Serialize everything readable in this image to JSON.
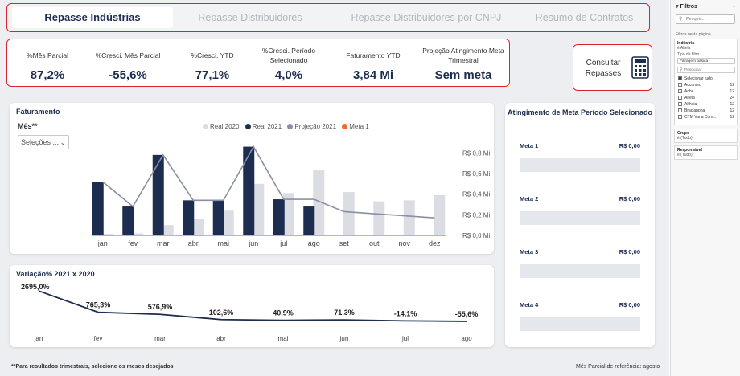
{
  "tabs": [
    {
      "label": "Repasse Indústrias",
      "active": true
    },
    {
      "label": "Repasse Distribuidores",
      "active": false
    },
    {
      "label": "Repasse Distribuidores por CNPJ",
      "active": false
    },
    {
      "label": "Resumo de Contratos",
      "active": false
    }
  ],
  "kpis": [
    {
      "label": "%Mês Parcial",
      "value": "87,2%"
    },
    {
      "label": "%Cresci. Mês Parcial",
      "value": "-55,6%"
    },
    {
      "label": "%Cresci. YTD",
      "value": "77,1%"
    },
    {
      "label": "%Cresci. Período Selecionado",
      "value": "4,0%"
    },
    {
      "label": "Faturamento YTD",
      "value": "3,84 Mi"
    },
    {
      "label": "Projeção Atingimento Meta Trimestral",
      "value": "Sem meta"
    }
  ],
  "consult": {
    "label": "Consultar Repasses",
    "icon": "calculator-icon"
  },
  "faturamento": {
    "title": "Faturamento",
    "month_label": "Mês**",
    "month_select": "Seleções ...",
    "legend": [
      {
        "name": "Real 2020",
        "color": "#dcdde3"
      },
      {
        "name": "Real 2021",
        "color": "#1d2d4f"
      },
      {
        "name": "Projeção 2021",
        "color": "#8a8fa3"
      },
      {
        "name": "Meta 1",
        "color": "#f26b2a"
      }
    ]
  },
  "variacao": {
    "title": "Variação% 2021 x 2020"
  },
  "chart_data": [
    {
      "type": "bar",
      "title": "Faturamento",
      "categories": [
        "jan",
        "fev",
        "mar",
        "abr",
        "mai",
        "jun",
        "jul",
        "ago",
        "set",
        "out",
        "nov",
        "dez"
      ],
      "y_ticks": [
        "R$ 0,0 Mi",
        "R$ 0,2 Mi",
        "R$ 0,4 Mi",
        "R$ 0,6 Mi",
        "R$ 0,8 Mi"
      ],
      "ylim": [
        0,
        0.88
      ],
      "series": [
        {
          "name": "Real 2020",
          "kind": "bar",
          "color": "#dcdde3",
          "values": [
            0.015,
            0.02,
            0.1,
            0.16,
            0.24,
            0.5,
            0.41,
            0.63,
            0.42,
            0.33,
            0.34,
            0.39
          ]
        },
        {
          "name": "Real 2021",
          "kind": "bar",
          "color": "#1d2d4f",
          "values": [
            0.52,
            0.28,
            0.78,
            0.34,
            0.34,
            0.86,
            0.35,
            0.28,
            null,
            null,
            null,
            null
          ]
        },
        {
          "name": "Projeção 2021",
          "kind": "line",
          "color": "#8a8fa3",
          "values": [
            0.52,
            0.28,
            0.78,
            0.34,
            0.34,
            0.86,
            0.35,
            0.35,
            0.23,
            0.21,
            0.19,
            0.17
          ]
        },
        {
          "name": "Meta 1",
          "kind": "line",
          "color": "#f26b2a",
          "values": [
            0,
            0,
            0,
            0,
            0,
            0,
            0,
            0,
            0,
            0,
            0,
            0
          ]
        }
      ],
      "grid": false,
      "legend_position": "top"
    },
    {
      "type": "line",
      "title": "Variação% 2021 x 2020",
      "categories": [
        "jan",
        "fev",
        "mar",
        "abr",
        "mai",
        "jun",
        "jul",
        "ago"
      ],
      "values": [
        2695.0,
        765.3,
        576.9,
        102.6,
        40.9,
        71.3,
        -14.1,
        -55.6
      ],
      "labels": [
        "2695,0%",
        "765,3%",
        "576,9%",
        "102,6%",
        "40,9%",
        "71,3%",
        "-14,1%",
        "-55,6%"
      ],
      "color": "#1d2d4f",
      "grid": false
    }
  ],
  "meta_card": {
    "title": "Atingimento de Meta Período Selecionado",
    "items": [
      {
        "name": "Meta 1",
        "value": "R$ 0,00"
      },
      {
        "name": "Meta 2",
        "value": "R$ 0,00"
      },
      {
        "name": "Meta 3",
        "value": "R$ 0,00"
      },
      {
        "name": "Meta 4",
        "value": "R$ 0,00"
      }
    ]
  },
  "footer": {
    "left": "**Para resultados trimestrais, selecione os meses desejados",
    "right": "Mês Parcial de referência: agosto"
  },
  "filters_pane": {
    "title": "Filtros",
    "search_placeholder": "Pesquis...",
    "subtitle": "Filtros nesta página",
    "industry": {
      "title": "Indústria",
      "subtitle": "é Altela",
      "filter_type_label": "Tipo de filtro",
      "filter_type_value": "Filtragem básica",
      "search_placeholder": "Pesquisar",
      "items": [
        {
          "label": "Selecionar tudo",
          "count": ""
        },
        {
          "label": "Accumed",
          "count": "12"
        },
        {
          "label": "Ache",
          "count": "12"
        },
        {
          "label": "Airela",
          "count": "24"
        },
        {
          "label": "Altheia",
          "count": "12"
        },
        {
          "label": "Bracianpha",
          "count": "12"
        },
        {
          "label": "CTM Varia Com...",
          "count": "12"
        }
      ]
    },
    "grupo": {
      "title": "Grupo",
      "subtitle": "é (Tudo)"
    },
    "responsavel": {
      "title": "Responsável",
      "subtitle": "é (Tudo)"
    }
  }
}
